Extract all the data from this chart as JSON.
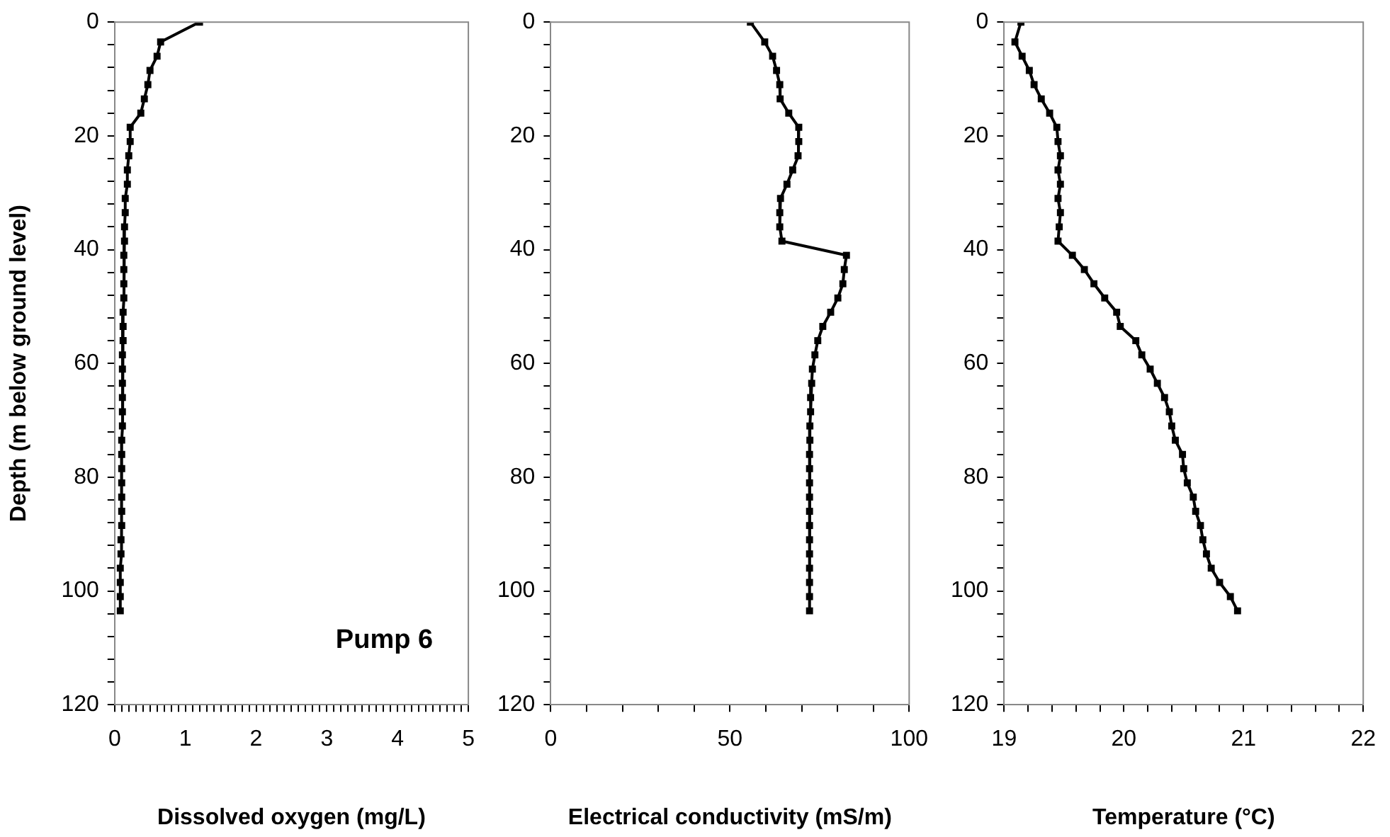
{
  "chart_data": [
    {
      "type": "line",
      "ylabel": "Depth (m below ground level)",
      "xlabel": "Dissolved oxygen (mg/L)",
      "annotations": [
        "Pump 6"
      ],
      "marker": "square",
      "line_style": "solid",
      "xlim": [
        0,
        5
      ],
      "xticks": [
        0,
        {
          "value": 0.1,
          "label": null
        },
        {
          "value": 0.2,
          "label": null
        },
        {
          "value": 0.3,
          "label": null
        },
        {
          "value": 0.4,
          "label": null
        },
        {
          "value": 0.5,
          "label": null
        },
        {
          "value": 0.6,
          "label": null
        },
        {
          "value": 0.7,
          "label": null
        },
        {
          "value": 0.8,
          "label": null
        },
        {
          "value": 0.9,
          "label": null
        },
        1,
        {
          "value": 1.1,
          "label": null
        },
        {
          "value": 1.2,
          "label": null
        },
        {
          "value": 1.3,
          "label": null
        },
        {
          "value": 1.4,
          "label": null
        },
        {
          "value": 1.5,
          "label": null
        },
        {
          "value": 1.6,
          "label": null
        },
        {
          "value": 1.7,
          "label": null
        },
        {
          "value": 1.8,
          "label": null
        },
        {
          "value": 1.9,
          "label": null
        },
        2,
        {
          "value": 2.1,
          "label": null
        },
        {
          "value": 2.2,
          "label": null
        },
        {
          "value": 2.3,
          "label": null
        },
        {
          "value": 2.4,
          "label": null
        },
        {
          "value": 2.5,
          "label": null
        },
        {
          "value": 2.6,
          "label": null
        },
        {
          "value": 2.7,
          "label": null
        },
        {
          "value": 2.8,
          "label": null
        },
        {
          "value": 2.9,
          "label": null
        },
        3,
        {
          "value": 3.1,
          "label": null
        },
        {
          "value": 3.2,
          "label": null
        },
        {
          "value": 3.3,
          "label": null
        },
        {
          "value": 3.4,
          "label": null
        },
        {
          "value": 3.5,
          "label": null
        },
        {
          "value": 3.6,
          "label": null
        },
        {
          "value": 3.7,
          "label": null
        },
        {
          "value": 3.8,
          "label": null
        },
        {
          "value": 3.9,
          "label": null
        },
        4,
        {
          "value": 4.1,
          "label": null
        },
        {
          "value": 4.2,
          "label": null
        },
        {
          "value": 4.3,
          "label": null
        },
        {
          "value": 4.4,
          "label": null
        },
        {
          "value": 4.5,
          "label": null
        },
        {
          "value": 4.6,
          "label": null
        },
        {
          "value": 4.7,
          "label": null
        },
        {
          "value": 4.8,
          "label": null
        },
        {
          "value": 4.9,
          "label": null
        },
        5
      ],
      "ylim": [
        120,
        0
      ],
      "yticks": [
        0,
        {
          "value": 4,
          "label": null
        },
        {
          "value": 8,
          "label": null
        },
        {
          "value": 12,
          "label": null
        },
        {
          "value": 16,
          "label": null
        },
        20,
        {
          "value": 24,
          "label": null
        },
        {
          "value": 28,
          "label": null
        },
        {
          "value": 32,
          "label": null
        },
        {
          "value": 36,
          "label": null
        },
        40,
        {
          "value": 44,
          "label": null
        },
        {
          "value": 48,
          "label": null
        },
        {
          "value": 52,
          "label": null
        },
        {
          "value": 56,
          "label": null
        },
        60,
        {
          "value": 64,
          "label": null
        },
        {
          "value": 68,
          "label": null
        },
        {
          "value": 72,
          "label": null
        },
        {
          "value": 76,
          "label": null
        },
        80,
        {
          "value": 84,
          "label": null
        },
        {
          "value": 88,
          "label": null
        },
        {
          "value": 92,
          "label": null
        },
        {
          "value": 96,
          "label": null
        },
        100,
        {
          "value": 104,
          "label": null
        },
        {
          "value": 108,
          "label": null
        },
        {
          "value": 112,
          "label": null
        },
        {
          "value": 116,
          "label": null
        },
        120
      ],
      "series": [
        {
          "color": "#000000",
          "x": [
            1.2,
            0.65,
            0.6,
            0.5,
            0.47,
            0.42,
            0.37,
            0.22,
            0.22,
            0.2,
            0.18,
            0.18,
            0.15,
            0.15,
            0.14,
            0.14,
            0.13,
            0.13,
            0.13,
            0.13,
            0.12,
            0.12,
            0.12,
            0.11,
            0.11,
            0.11,
            0.11,
            0.11,
            0.11,
            0.1,
            0.1,
            0.1,
            0.1,
            0.1,
            0.1,
            0.1,
            0.09,
            0.09,
            0.08,
            0.08,
            0.08,
            0.08
          ],
          "values": [
            0,
            3.5,
            6,
            8.5,
            11,
            13.5,
            16,
            18.5,
            21,
            23.5,
            26,
            28.5,
            31,
            33.5,
            36,
            38.5,
            41,
            43.5,
            46,
            48.5,
            51,
            53.5,
            56,
            58.5,
            61,
            63.5,
            66,
            68.5,
            71,
            73.5,
            76,
            78.5,
            81,
            83.5,
            86,
            88.5,
            91,
            93.5,
            96,
            98.5,
            101,
            103.5
          ]
        }
      ]
    },
    {
      "type": "line",
      "xlabel": "Electrical conductivity (mS/m)",
      "marker": "square",
      "line_style": "solid",
      "xlim": [
        0,
        100
      ],
      "xticks": [
        0,
        {
          "value": 10,
          "label": null
        },
        {
          "value": 20,
          "label": null
        },
        {
          "value": 30,
          "label": null
        },
        {
          "value": 40,
          "label": null
        },
        50,
        {
          "value": 60,
          "label": null
        },
        {
          "value": 70,
          "label": null
        },
        {
          "value": 80,
          "label": null
        },
        {
          "value": 90,
          "label": null
        },
        100
      ],
      "ylim": [
        120,
        0
      ],
      "yticks": [
        0,
        {
          "value": 4,
          "label": null
        },
        {
          "value": 8,
          "label": null
        },
        {
          "value": 12,
          "label": null
        },
        {
          "value": 16,
          "label": null
        },
        20,
        {
          "value": 24,
          "label": null
        },
        {
          "value": 28,
          "label": null
        },
        {
          "value": 32,
          "label": null
        },
        {
          "value": 36,
          "label": null
        },
        40,
        {
          "value": 44,
          "label": null
        },
        {
          "value": 48,
          "label": null
        },
        {
          "value": 52,
          "label": null
        },
        {
          "value": 56,
          "label": null
        },
        60,
        {
          "value": 64,
          "label": null
        },
        {
          "value": 68,
          "label": null
        },
        {
          "value": 72,
          "label": null
        },
        {
          "value": 76,
          "label": null
        },
        80,
        {
          "value": 84,
          "label": null
        },
        {
          "value": 88,
          "label": null
        },
        {
          "value": 92,
          "label": null
        },
        {
          "value": 96,
          "label": null
        },
        100,
        {
          "value": 104,
          "label": null
        },
        {
          "value": 108,
          "label": null
        },
        {
          "value": 112,
          "label": null
        },
        {
          "value": 116,
          "label": null
        },
        120
      ],
      "series": [
        {
          "color": "#000000",
          "x": [
            55.7,
            59.7,
            61.9,
            63,
            63.9,
            64,
            66.4,
            69.2,
            69.2,
            69,
            67.5,
            65.9,
            64.1,
            63.9,
            63.9,
            64.5,
            82.5,
            81.9,
            81.5,
            80.1,
            78.1,
            75.9,
            74.5,
            73.7,
            73,
            72.8,
            72.5,
            72.5,
            72.3,
            72.3,
            72.2,
            72.2,
            72.2,
            72.2,
            72.2,
            72.2,
            72.2,
            72.2,
            72.2,
            72.2,
            72.2,
            72.2
          ],
          "values": [
            0,
            3.5,
            6,
            8.5,
            11,
            13.5,
            16,
            18.5,
            21,
            23.5,
            26,
            28.5,
            31,
            33.5,
            36,
            38.5,
            41,
            43.5,
            46,
            48.5,
            51,
            53.5,
            56,
            58.5,
            61,
            63.5,
            66,
            68.5,
            71,
            73.5,
            76,
            78.5,
            81,
            83.5,
            86,
            88.5,
            91,
            93.5,
            96,
            98.5,
            101,
            103.5
          ]
        }
      ]
    },
    {
      "type": "line",
      "xlabel": "Temperature (°C)",
      "marker": "square",
      "line_style": "solid",
      "xlim": [
        19,
        22
      ],
      "xticks": [
        19,
        {
          "value": 19.2,
          "label": null
        },
        {
          "value": 19.4,
          "label": null
        },
        {
          "value": 19.6,
          "label": null
        },
        {
          "value": 19.8,
          "label": null
        },
        20,
        {
          "value": 20.2,
          "label": null
        },
        {
          "value": 20.4,
          "label": null
        },
        {
          "value": 20.6,
          "label": null
        },
        {
          "value": 20.8,
          "label": null
        },
        21,
        {
          "value": 21.2,
          "label": null
        },
        {
          "value": 21.4,
          "label": null
        },
        {
          "value": 21.6,
          "label": null
        },
        {
          "value": 21.8,
          "label": null
        },
        22
      ],
      "ylim": [
        120,
        0
      ],
      "yticks": [
        0,
        {
          "value": 4,
          "label": null
        },
        {
          "value": 8,
          "label": null
        },
        {
          "value": 12,
          "label": null
        },
        {
          "value": 16,
          "label": null
        },
        20,
        {
          "value": 24,
          "label": null
        },
        {
          "value": 28,
          "label": null
        },
        {
          "value": 32,
          "label": null
        },
        {
          "value": 36,
          "label": null
        },
        40,
        {
          "value": 44,
          "label": null
        },
        {
          "value": 48,
          "label": null
        },
        {
          "value": 52,
          "label": null
        },
        {
          "value": 56,
          "label": null
        },
        60,
        {
          "value": 64,
          "label": null
        },
        {
          "value": 68,
          "label": null
        },
        {
          "value": 72,
          "label": null
        },
        {
          "value": 76,
          "label": null
        },
        80,
        {
          "value": 84,
          "label": null
        },
        {
          "value": 88,
          "label": null
        },
        {
          "value": 92,
          "label": null
        },
        {
          "value": 96,
          "label": null
        },
        100,
        {
          "value": 104,
          "label": null
        },
        {
          "value": 108,
          "label": null
        },
        {
          "value": 112,
          "label": null
        },
        {
          "value": 116,
          "label": null
        },
        120
      ],
      "series": [
        {
          "color": "#000000",
          "x": [
            19.14,
            19.09,
            19.15,
            19.21,
            19.25,
            19.31,
            19.38,
            19.44,
            19.45,
            19.47,
            19.45,
            19.47,
            19.45,
            19.47,
            19.46,
            19.45,
            19.57,
            19.67,
            19.75,
            19.84,
            19.94,
            19.97,
            20.1,
            20.15,
            20.22,
            20.28,
            20.34,
            20.38,
            20.4,
            20.43,
            20.49,
            20.5,
            20.53,
            20.58,
            20.6,
            20.64,
            20.66,
            20.69,
            20.73,
            20.8,
            20.89,
            20.95
          ],
          "values": [
            0,
            3.5,
            6,
            8.5,
            11,
            13.5,
            16,
            18.5,
            21,
            23.5,
            26,
            28.5,
            31,
            33.5,
            36,
            38.5,
            41,
            43.5,
            46,
            48.5,
            51,
            53.5,
            56,
            58.5,
            61,
            63.5,
            66,
            68.5,
            71,
            73.5,
            76,
            78.5,
            81,
            83.5,
            86,
            88.5,
            91,
            93.5,
            96,
            98.5,
            101,
            103.5
          ]
        }
      ]
    }
  ]
}
